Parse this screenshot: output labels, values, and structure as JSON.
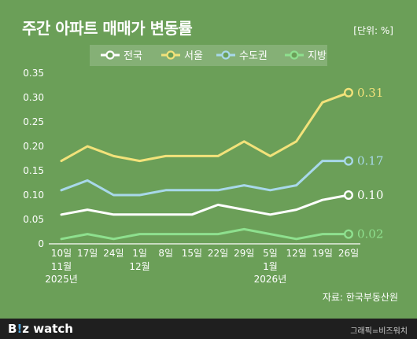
{
  "header": {
    "title": "주간 아파트 매매가 변동률",
    "unit": "[단위: %]"
  },
  "source": "자료: 한국부동산원",
  "footer": {
    "logo_b": "B",
    "logo_i": "!",
    "logo_rest": "z watch",
    "credit": "그래픽=비즈워치"
  },
  "colors": {
    "background": "#6b9f58",
    "axis_text": "#ffffff",
    "grid": "#7fb16c",
    "footer_bg": "#1f1f1f"
  },
  "chart_data": {
    "type": "line",
    "title": "주간 아파트 매매가 변동률",
    "xlabel": "",
    "ylabel": "",
    "ylim": [
      0,
      0.35
    ],
    "yticks": [
      "0",
      "0.05",
      "0.10",
      "0.15",
      "0.20",
      "0.25",
      "0.30",
      "0.35"
    ],
    "grid": false,
    "legend_position": "top-center",
    "categories": [
      "10일",
      "17일",
      "24일",
      "1일",
      "8일",
      "15일",
      "22일",
      "29일",
      "5일",
      "12일",
      "19일",
      "26일"
    ],
    "category_sublabels": [
      [
        "11월",
        "2025년"
      ],
      [],
      [],
      [
        "12월"
      ],
      [],
      [],
      [],
      [],
      [
        "1월",
        "2026년"
      ],
      [],
      [],
      []
    ],
    "series": [
      {
        "name": "전국",
        "color": "#ffffff",
        "values": [
          0.06,
          0.07,
          0.06,
          0.06,
          0.06,
          0.06,
          0.08,
          0.07,
          0.06,
          0.07,
          0.09,
          0.1
        ],
        "end_label": "0.10"
      },
      {
        "name": "서울",
        "color": "#f2e27a",
        "values": [
          0.17,
          0.2,
          0.18,
          0.17,
          0.18,
          0.18,
          0.18,
          0.21,
          0.18,
          0.21,
          0.29,
          0.31
        ],
        "end_label": "0.31"
      },
      {
        "name": "수도권",
        "color": "#a8d8ea",
        "values": [
          0.11,
          0.13,
          0.1,
          0.1,
          0.11,
          0.11,
          0.11,
          0.12,
          0.11,
          0.12,
          0.17,
          0.17
        ],
        "end_label": "0.17"
      },
      {
        "name": "지방",
        "color": "#8ee08e",
        "values": [
          0.01,
          0.02,
          0.01,
          0.02,
          0.02,
          0.02,
          0.02,
          0.03,
          0.02,
          0.01,
          0.02,
          0.02
        ],
        "end_label": "0.02"
      }
    ]
  }
}
